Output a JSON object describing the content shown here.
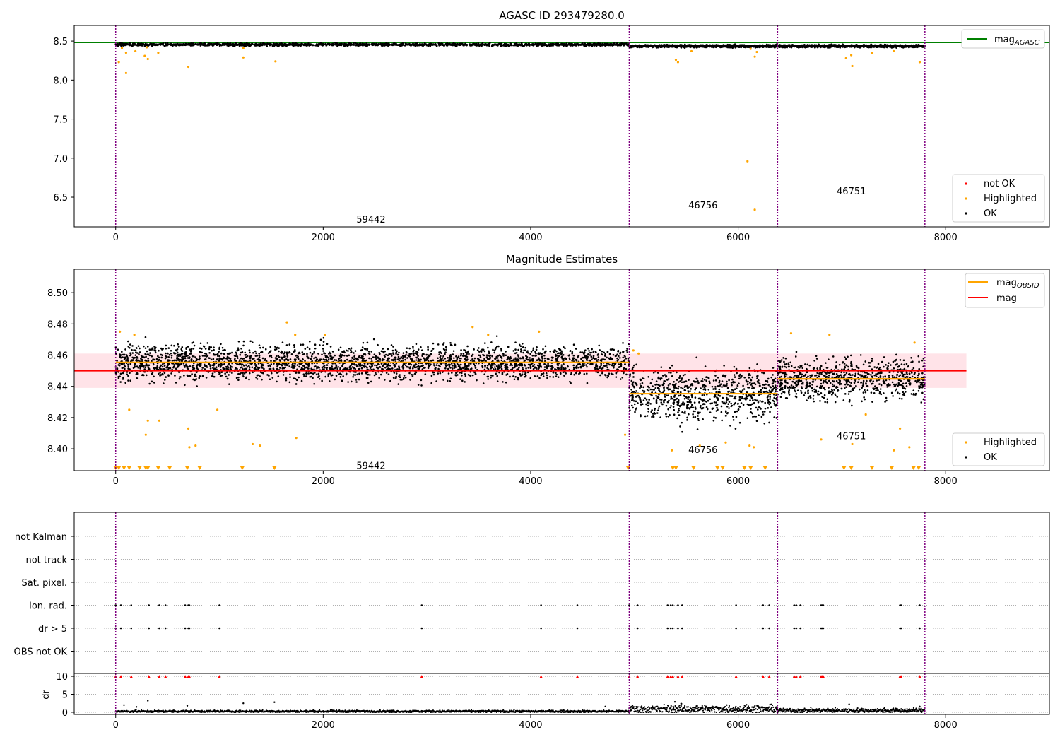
{
  "figure": {
    "colors": {
      "ok": "#000000",
      "highlighted": "#ffa500",
      "not_ok": "#ff0000",
      "mag_agasc": "#008000",
      "mag_obsid": "#ffa500",
      "mag": "#ff0000",
      "band": "#ffc0cb",
      "obs_line": "#800080"
    }
  },
  "chart_data": [
    {
      "type": "scatter",
      "title": "AGASC ID 293479280.0",
      "xlabel": "",
      "ylabel": "",
      "xlim": [
        -400,
        9000
      ],
      "ylim": [
        6.12,
        8.7
      ],
      "x_ticks": [
        0,
        2000,
        4000,
        6000,
        8000
      ],
      "y_ticks": [
        6.5,
        7.0,
        7.5,
        8.0,
        8.5
      ],
      "grid": false,
      "legend": {
        "placement": "top-right",
        "entries": [
          {
            "label_main": "mag",
            "label_sub": "AGASC",
            "marker": "line",
            "color": "#008000"
          }
        ]
      },
      "legend2": {
        "placement": "bottom-right",
        "entries": [
          {
            "label": "not OK",
            "marker": "dot",
            "color": "#ff0000"
          },
          {
            "label": "Highlighted",
            "marker": "dot",
            "color": "#ffa500"
          },
          {
            "label": "OK",
            "marker": "dot",
            "color": "#000000"
          }
        ]
      },
      "hlines": [
        {
          "name": "mag_AGASC",
          "y": 8.48,
          "color": "#008000"
        }
      ],
      "obs_boundaries": [
        0,
        4950,
        6380,
        7800
      ],
      "obs_labels": [
        {
          "text": "59442",
          "x": 2320,
          "y": 6.22
        },
        {
          "text": "46756",
          "x": 5520,
          "y": 6.4
        },
        {
          "text": "46751",
          "x": 6950,
          "y": 6.58
        }
      ],
      "ok_band": [
        {
          "x": [
            0,
            4950
          ],
          "y": 8.455
        },
        {
          "x": [
            4950,
            7800
          ],
          "y": 8.435
        }
      ],
      "highlighted_points": [
        {
          "x": 30,
          "y": 8.23
        },
        {
          "x": 60,
          "y": 8.41
        },
        {
          "x": 100,
          "y": 8.35
        },
        {
          "x": 100,
          "y": 8.09
        },
        {
          "x": 190,
          "y": 8.37
        },
        {
          "x": 280,
          "y": 8.31
        },
        {
          "x": 300,
          "y": 8.42
        },
        {
          "x": 310,
          "y": 8.27
        },
        {
          "x": 410,
          "y": 8.35
        },
        {
          "x": 700,
          "y": 8.17
        },
        {
          "x": 1230,
          "y": 8.29
        },
        {
          "x": 1230,
          "y": 8.41
        },
        {
          "x": 1540,
          "y": 8.24
        },
        {
          "x": 5400,
          "y": 8.26
        },
        {
          "x": 5420,
          "y": 8.23
        },
        {
          "x": 5550,
          "y": 8.37
        },
        {
          "x": 6120,
          "y": 8.4
        },
        {
          "x": 6160,
          "y": 8.3
        },
        {
          "x": 6180,
          "y": 8.36
        },
        {
          "x": 6090,
          "y": 6.96
        },
        {
          "x": 6160,
          "y": 6.34
        },
        {
          "x": 7040,
          "y": 8.28
        },
        {
          "x": 7090,
          "y": 8.32
        },
        {
          "x": 7100,
          "y": 8.18
        },
        {
          "x": 7290,
          "y": 8.35
        },
        {
          "x": 7500,
          "y": 8.37
        },
        {
          "x": 7750,
          "y": 8.23
        }
      ]
    },
    {
      "type": "scatter",
      "title": "Magnitude Estimates",
      "xlabel": "",
      "ylabel": "",
      "xlim": [
        -400,
        9000
      ],
      "ylim": [
        8.386,
        8.515
      ],
      "x_ticks": [
        0,
        2000,
        4000,
        6000,
        8000
      ],
      "y_ticks": [
        8.4,
        8.42,
        8.44,
        8.46,
        8.48,
        8.5
      ],
      "grid": false,
      "legend": {
        "placement": "top-right",
        "entries": [
          {
            "label_main": "mag",
            "label_sub": "OBSID",
            "marker": "line",
            "color": "#ffa500"
          },
          {
            "label_main": "mag",
            "label_sub": "",
            "marker": "line",
            "color": "#ff0000"
          }
        ]
      },
      "legend2": {
        "placement": "bottom-right",
        "entries": [
          {
            "label": "Highlighted",
            "marker": "dot",
            "color": "#ffa500"
          },
          {
            "label": "OK",
            "marker": "dot",
            "color": "#000000"
          }
        ]
      },
      "mag": {
        "y": 8.45,
        "band": [
          8.439,
          8.461
        ],
        "x": [
          -400,
          8200
        ]
      },
      "mag_obsid": [
        {
          "x": [
            0,
            4950
          ],
          "y": 8.4553,
          "spread": 0.0055
        },
        {
          "x": [
            4950,
            6380
          ],
          "y": 8.4353,
          "spread": 0.0085
        },
        {
          "x": [
            6380,
            7800
          ],
          "y": 8.4448,
          "spread": 0.0065
        }
      ],
      "obs_boundaries": [
        0,
        4950,
        6380,
        7800
      ],
      "obs_labels": [
        {
          "text": "59442",
          "x": 2320,
          "y": 8.3895
        },
        {
          "text": "46756",
          "x": 5520,
          "y": 8.3995
        },
        {
          "text": "46751",
          "x": 6950,
          "y": 8.4085
        }
      ],
      "highlighted_points": [
        {
          "x": 40,
          "y": 8.475
        },
        {
          "x": 130,
          "y": 8.425
        },
        {
          "x": 180,
          "y": 8.473
        },
        {
          "x": 290,
          "y": 8.409
        },
        {
          "x": 310,
          "y": 8.418
        },
        {
          "x": 420,
          "y": 8.418
        },
        {
          "x": 700,
          "y": 8.413
        },
        {
          "x": 710,
          "y": 8.401
        },
        {
          "x": 770,
          "y": 8.402
        },
        {
          "x": 980,
          "y": 8.425
        },
        {
          "x": 1320,
          "y": 8.403
        },
        {
          "x": 1390,
          "y": 8.402
        },
        {
          "x": 1650,
          "y": 8.481
        },
        {
          "x": 1730,
          "y": 8.473
        },
        {
          "x": 1740,
          "y": 8.407
        },
        {
          "x": 2020,
          "y": 8.473
        },
        {
          "x": 3440,
          "y": 8.478
        },
        {
          "x": 3590,
          "y": 8.473
        },
        {
          "x": 4080,
          "y": 8.475
        },
        {
          "x": 4910,
          "y": 8.409
        },
        {
          "x": 4990,
          "y": 8.463
        },
        {
          "x": 5040,
          "y": 8.461
        },
        {
          "x": 5360,
          "y": 8.399
        },
        {
          "x": 5630,
          "y": 8.402
        },
        {
          "x": 5880,
          "y": 8.404
        },
        {
          "x": 6110,
          "y": 8.402
        },
        {
          "x": 6150,
          "y": 8.401
        },
        {
          "x": 6510,
          "y": 8.474
        },
        {
          "x": 6800,
          "y": 8.406
        },
        {
          "x": 6880,
          "y": 8.473
        },
        {
          "x": 7100,
          "y": 8.403
        },
        {
          "x": 7230,
          "y": 8.422
        },
        {
          "x": 7500,
          "y": 8.399
        },
        {
          "x": 7560,
          "y": 8.413
        },
        {
          "x": 7650,
          "y": 8.401
        },
        {
          "x": 7700,
          "y": 8.468
        }
      ],
      "below_range_markers": [
        0,
        30,
        80,
        130,
        230,
        290,
        310,
        410,
        520,
        690,
        810,
        1220,
        1530,
        4940,
        5370,
        5400,
        5570,
        5800,
        5850,
        6060,
        6120,
        6260,
        7020,
        7090,
        7290,
        7480,
        7690,
        7740
      ]
    },
    {
      "type": "scatter",
      "title": "",
      "xlabel": "",
      "ylabel": "",
      "xlim": [
        -400,
        9000
      ],
      "categories": [
        "not Kalman",
        "not track",
        "Sat. pixel.",
        "Ion. rad.",
        "dr > 5",
        "OBS not OK"
      ],
      "grid": true,
      "obs_boundaries": [
        0,
        4950,
        6380,
        7800
      ],
      "flag_events": [
        {
          "flags": [
            "Ion. rad.",
            "dr > 5"
          ],
          "x": [
            0,
            50,
            150,
            320,
            420,
            480,
            670,
            700,
            710,
            1000,
            2950,
            4100,
            4450,
            4950,
            5030,
            5320,
            5350,
            5370,
            5420,
            5460,
            5980,
            6240,
            6300,
            6540,
            6560,
            6600,
            6800,
            6810,
            6820,
            7560,
            7570,
            7750
          ]
        }
      ]
    },
    {
      "type": "scatter",
      "title": "",
      "xlabel": "",
      "ylabel": "dr",
      "xlim": [
        -400,
        9000
      ],
      "ylim": [
        -0.6,
        10.8
      ],
      "y_ticks": [
        0,
        5,
        10
      ],
      "grid": true,
      "obs_boundaries": [
        0,
        4950,
        6380,
        7800
      ],
      "clipped_markers_at_10": [
        0,
        50,
        150,
        320,
        420,
        480,
        670,
        700,
        710,
        1000,
        2950,
        4100,
        4450,
        4950,
        5030,
        5320,
        5350,
        5370,
        5420,
        5460,
        5980,
        6240,
        6300,
        6540,
        6560,
        6600,
        6800,
        6810,
        6820,
        7560,
        7570,
        7750
      ],
      "outlier_points": [
        {
          "x": 80,
          "y": 2.0
        },
        {
          "x": 200,
          "y": 1.5
        },
        {
          "x": 310,
          "y": 3.2
        },
        {
          "x": 690,
          "y": 1.8
        },
        {
          "x": 1230,
          "y": 2.5
        },
        {
          "x": 1530,
          "y": 2.8
        },
        {
          "x": 4720,
          "y": 1.6
        },
        {
          "x": 5390,
          "y": 2.9
        },
        {
          "x": 5450,
          "y": 2.4
        },
        {
          "x": 6080,
          "y": 2.1
        },
        {
          "x": 7070,
          "y": 2.2
        },
        {
          "x": 7750,
          "y": 1.6
        }
      ],
      "baseline": [
        {
          "x": [
            0,
            4950
          ],
          "y": 0.25
        },
        {
          "x": [
            4950,
            6380
          ],
          "y": 0.9
        },
        {
          "x": [
            6380,
            7800
          ],
          "y": 0.5
        }
      ]
    }
  ]
}
